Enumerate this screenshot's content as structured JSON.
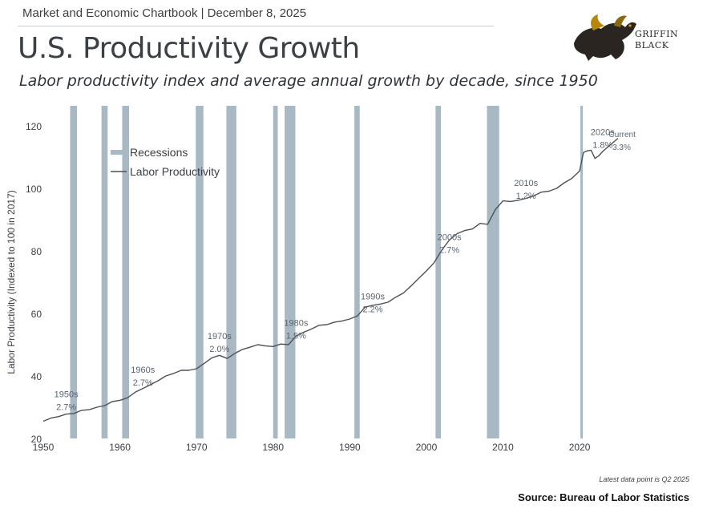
{
  "header": {
    "chartbook": "Market and Economic Chartbook | December 8, 2025"
  },
  "title": "U.S. Productivity Growth",
  "subtitle": "Labor productivity index and average annual growth by decade, since 1950",
  "logo": {
    "name": "griffin-icon",
    "line1": "GRIFFIN",
    "line2": "BLACK"
  },
  "footnote": "Latest data point is Q2 2025",
  "source": "Source: Bureau of Labor Statistics",
  "colors": {
    "recession": "#a8b9c4",
    "line": "#4a5258",
    "text": "#3a3f44",
    "annotation": "#5a6570"
  },
  "chart_data": {
    "type": "line",
    "title": "U.S. Productivity Growth",
    "ylabel": "Labor Productivity (Indexed to 100 in 2017)",
    "xlabel": "",
    "xlim": [
      1950,
      2027
    ],
    "ylim": [
      20,
      120
    ],
    "x_ticks": [
      1950,
      1960,
      1970,
      1980,
      1990,
      2000,
      2010,
      2020
    ],
    "y_ticks": [
      20,
      40,
      60,
      80,
      100,
      120
    ],
    "grid": false,
    "legend": {
      "position": "top-left",
      "items": [
        {
          "label": "Recessions",
          "kind": "band"
        },
        {
          "label": "Labor Productivity",
          "kind": "line"
        }
      ]
    },
    "recessions": [
      [
        1953.5,
        1954.4
      ],
      [
        1957.6,
        1958.4
      ],
      [
        1960.3,
        1961.2
      ],
      [
        1969.9,
        1970.9
      ],
      [
        1973.9,
        1975.2
      ],
      [
        1980.0,
        1980.6
      ],
      [
        1981.5,
        1982.9
      ],
      [
        1990.6,
        1991.3
      ],
      [
        2001.2,
        2001.9
      ],
      [
        2007.9,
        2009.5
      ],
      [
        2020.1,
        2020.4
      ]
    ],
    "series": [
      {
        "name": "Labor Productivity",
        "x": [
          1950,
          1951,
          1952,
          1953,
          1954,
          1955,
          1956,
          1957,
          1958,
          1959,
          1960,
          1961,
          1962,
          1963,
          1964,
          1965,
          1966,
          1967,
          1968,
          1969,
          1970,
          1971,
          1972,
          1973,
          1974,
          1975,
          1976,
          1977,
          1978,
          1979,
          1980,
          1981,
          1982,
          1983,
          1984,
          1985,
          1986,
          1987,
          1988,
          1989,
          1990,
          1991,
          1992,
          1993,
          1994,
          1995,
          1996,
          1997,
          1998,
          1999,
          2000,
          2001,
          2002,
          2003,
          2004,
          2005,
          2006,
          2007,
          2008,
          2009,
          2010,
          2011,
          2012,
          2013,
          2014,
          2015,
          2016,
          2017,
          2018,
          2019,
          2020,
          2020.5,
          2021,
          2021.5,
          2022,
          2022.5,
          2023,
          2024,
          2025
        ],
        "values": [
          25.5,
          26.5,
          27.0,
          27.8,
          28.0,
          29.0,
          29.2,
          30.0,
          30.5,
          31.8,
          32.2,
          33.0,
          34.8,
          36.0,
          37.2,
          38.5,
          40.0,
          40.8,
          41.8,
          41.8,
          42.3,
          44.0,
          45.8,
          46.6,
          45.6,
          47.2,
          48.5,
          49.2,
          50.0,
          49.6,
          49.4,
          50.2,
          50.0,
          52.8,
          54.0,
          55.0,
          56.2,
          56.4,
          57.2,
          57.6,
          58.2,
          59.2,
          62.0,
          62.6,
          63.0,
          63.6,
          65.2,
          66.5,
          68.8,
          71.2,
          73.6,
          76.2,
          80.2,
          83.5,
          85.5,
          86.5,
          87.0,
          88.8,
          88.5,
          93.2,
          96.0,
          95.8,
          96.2,
          96.8,
          97.6,
          98.8,
          99.1,
          100.0,
          101.8,
          103.2,
          105.6,
          111.5,
          112.0,
          112.2,
          109.6,
          110.4,
          111.8,
          113.9,
          116.0
        ]
      }
    ],
    "annotations": [
      {
        "label": "1950s",
        "value": "2.7%",
        "x": 1953.0,
        "y": 33.2
      },
      {
        "label": "1960s",
        "value": "2.7%",
        "x": 1963.0,
        "y": 41.0
      },
      {
        "label": "1970s",
        "value": "2.0%",
        "x": 1973.0,
        "y": 51.8
      },
      {
        "label": "1980s",
        "value": "1.5%",
        "x": 1983.0,
        "y": 56.0
      },
      {
        "label": "1990s",
        "value": "2.2%",
        "x": 1993.0,
        "y": 64.5
      },
      {
        "label": "2000s",
        "value": "2.7%",
        "x": 2003.0,
        "y": 83.5
      },
      {
        "label": "2010s",
        "value": "1.2%",
        "x": 2013.0,
        "y": 100.8
      },
      {
        "label": "2020s",
        "value": "1.8%",
        "x": 2023.0,
        "y": 117.0
      },
      {
        "label": "Current",
        "value": "3.3%",
        "x": 2027.3,
        "y": 116.4
      }
    ]
  }
}
